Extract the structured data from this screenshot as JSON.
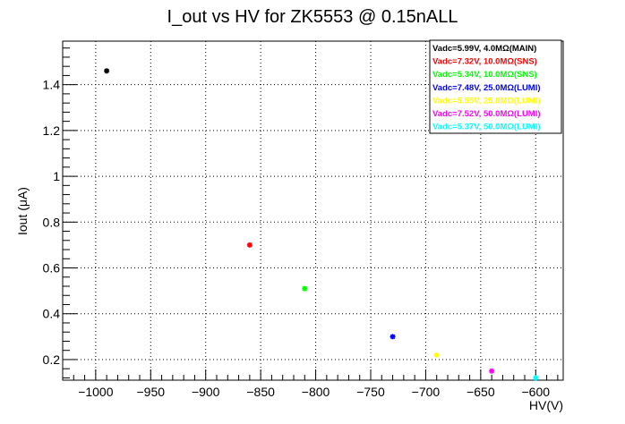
{
  "chart_data": {
    "type": "scatter",
    "title": "I_out vs HV for ZK5553 @ 0.15nALL",
    "xlabel": "HV(V)",
    "ylabel": "Iout (μA)",
    "xlim": [
      -1030,
      -575
    ],
    "ylim": [
      0.11,
      1.59
    ],
    "xticks": [
      -1000,
      -950,
      -900,
      -850,
      -800,
      -750,
      -700,
      -650,
      -600
    ],
    "xtick_labels": [
      "−1000",
      "−950",
      "−900",
      "−850",
      "−800",
      "−750",
      "−700",
      "−650",
      "−600"
    ],
    "yticks": [
      0.2,
      0.4,
      0.6,
      0.8,
      1.0,
      1.2,
      1.4
    ],
    "ytick_labels": [
      "0.2",
      "0.4",
      "0.6",
      "0.8",
      "1",
      "1.2",
      "1.4"
    ],
    "grid": true,
    "legend_position": "top-right",
    "series": [
      {
        "name": "Vadc=5.99V, 4.0MΩ(MAIN)",
        "color": "#000000",
        "points": [
          [
            -990,
            1.46
          ]
        ]
      },
      {
        "name": "Vadc=7.32V, 10.0MΩ(SNS)",
        "color": "#ff0000",
        "points": [
          [
            -860,
            0.7
          ]
        ]
      },
      {
        "name": "Vadc=5.34V, 10.0MΩ(SNS)",
        "color": "#00ff00",
        "points": [
          [
            -810,
            0.51
          ]
        ]
      },
      {
        "name": "Vadc=7.48V, 25.0MΩ(LUMI)",
        "color": "#0000ff",
        "points": [
          [
            -730,
            0.3
          ]
        ]
      },
      {
        "name": "Vadc=5.55V, 25.0MΩ(LUMI)",
        "color": "#ffff00",
        "points": [
          [
            -690,
            0.22
          ]
        ]
      },
      {
        "name": "Vadc=7.52V, 50.0MΩ(LUMI)",
        "color": "#ff00ff",
        "points": [
          [
            -640,
            0.15
          ]
        ]
      },
      {
        "name": "Vadc=5.37V, 50.0MΩ(LUMI)",
        "color": "#00ffff",
        "points": [
          [
            -600,
            0.12
          ]
        ]
      }
    ]
  }
}
